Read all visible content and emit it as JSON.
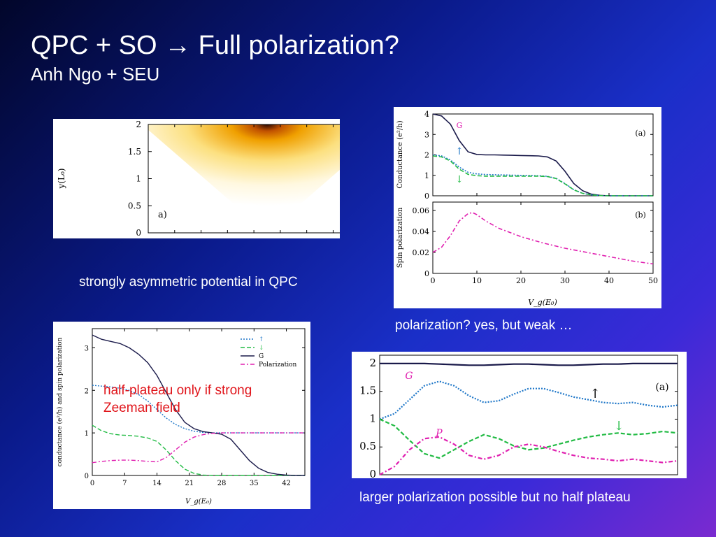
{
  "slide": {
    "title": "QPC + SO → Full polarization?",
    "subtitle": "Anh Ngo + SEU",
    "captions": {
      "heatmap": "strongly  asymmetric potential in QPC",
      "top_right": "polarization? yes, but weak …",
      "bottom_right": "larger polarization possible but no half plateau"
    },
    "red_note_lines": [
      "half-plateau only if strong",
      "Zeeman field"
    ]
  },
  "colors": {
    "up": "#1f77c8",
    "down": "#22bb44",
    "G": "#1a1a4a",
    "P": "#e020b0",
    "note": "#e0141a"
  },
  "chart_data": [
    {
      "type": "heatmap",
      "panel_label": "a)",
      "ylabel": "y(L₀)",
      "yticks": [
        "0",
        "0.5",
        "1",
        "1.5",
        "2"
      ],
      "ylim": [
        0,
        2
      ],
      "colormap": "white-yellow-orange-black"
    },
    {
      "type": "line",
      "panel_label": "(a)",
      "ylabel": "Conductance (e²/h)",
      "yticks": [
        "0",
        "1",
        "2",
        "3",
        "4"
      ],
      "ylim": [
        0,
        4
      ],
      "xlim": [
        0,
        50
      ],
      "x": [
        0,
        2,
        4,
        6,
        8,
        10,
        12,
        14,
        16,
        18,
        20,
        22,
        24,
        26,
        28,
        30,
        32,
        34,
        36,
        38,
        40,
        42,
        44,
        46,
        48,
        50
      ],
      "series": [
        {
          "name": "G",
          "values": [
            4.0,
            3.9,
            3.5,
            2.7,
            2.15,
            2.02,
            2.0,
            2.0,
            1.99,
            1.98,
            1.97,
            1.96,
            1.95,
            1.9,
            1.7,
            1.2,
            0.6,
            0.25,
            0.08,
            0.02,
            0.0,
            0.0,
            0.0,
            0.0,
            0.0,
            0.0
          ]
        },
        {
          "name": "↑",
          "values": [
            2.0,
            1.95,
            1.75,
            1.4,
            1.15,
            1.07,
            1.04,
            1.03,
            1.02,
            1.01,
            1.0,
            0.99,
            0.98,
            0.95,
            0.85,
            0.6,
            0.3,
            0.12,
            0.04,
            0.01,
            0.0,
            0.0,
            0.0,
            0.0,
            0.0,
            0.0
          ]
        },
        {
          "name": "↓",
          "values": [
            1.95,
            1.9,
            1.7,
            1.3,
            1.05,
            0.98,
            0.96,
            0.96,
            0.96,
            0.96,
            0.96,
            0.96,
            0.96,
            0.94,
            0.84,
            0.58,
            0.29,
            0.12,
            0.04,
            0.01,
            0.0,
            0.0,
            0.0,
            0.0,
            0.0,
            0.0
          ]
        }
      ],
      "annotations": [
        "G",
        "↑",
        "↓"
      ]
    },
    {
      "type": "line",
      "panel_label": "(b)",
      "ylabel": "Spin polarization",
      "xlabel": "V_g(E₀)",
      "yticks": [
        "0",
        "0.02",
        "0.04",
        "0.06"
      ],
      "xticks": [
        "0",
        "10",
        "20",
        "30",
        "40",
        "50"
      ],
      "ylim": [
        0,
        0.068
      ],
      "xlim": [
        0,
        50
      ],
      "x": [
        0,
        2,
        4,
        6,
        8,
        9,
        10,
        12,
        15,
        20,
        25,
        30,
        35,
        40,
        45,
        50
      ],
      "series": [
        {
          "name": "P",
          "values": [
            0.02,
            0.025,
            0.036,
            0.05,
            0.057,
            0.058,
            0.056,
            0.05,
            0.043,
            0.035,
            0.029,
            0.024,
            0.02,
            0.016,
            0.012,
            0.009
          ]
        }
      ]
    },
    {
      "type": "line",
      "ylabel": "conductance (e²/h) and spin polarization",
      "xlabel": "V_g(E₀)",
      "yticks": [
        "0",
        "1",
        "2",
        "3"
      ],
      "xticks": [
        "0",
        "7",
        "14",
        "21",
        "28",
        "35",
        "42"
      ],
      "ylim": [
        0,
        3.45
      ],
      "xlim": [
        0,
        46
      ],
      "legend": [
        "↑",
        "↓",
        "G",
        "Polarization"
      ],
      "legend_position": "top-right",
      "x": [
        0,
        2,
        4,
        6,
        8,
        10,
        12,
        14,
        16,
        18,
        20,
        22,
        24,
        26,
        28,
        30,
        32,
        34,
        36,
        38,
        40,
        42,
        44,
        46
      ],
      "series": [
        {
          "name": "↑",
          "values": [
            2.12,
            2.1,
            2.08,
            2.05,
            2.0,
            1.9,
            1.75,
            1.55,
            1.35,
            1.2,
            1.1,
            1.04,
            1.01,
            1.0,
            1.0,
            1.0,
            1.0,
            1.0,
            1.0,
            1.0,
            1.0,
            1.0,
            1.0,
            1.0
          ]
        },
        {
          "name": "↓",
          "values": [
            1.18,
            1.05,
            0.98,
            0.95,
            0.94,
            0.92,
            0.88,
            0.8,
            0.6,
            0.35,
            0.15,
            0.05,
            0.01,
            0.0,
            0.0,
            0.0,
            0.0,
            0.0,
            0.0,
            0.0,
            0.0,
            0.0,
            0.0,
            0.0
          ]
        },
        {
          "name": "G",
          "values": [
            3.3,
            3.2,
            3.15,
            3.1,
            3.0,
            2.85,
            2.65,
            2.35,
            1.95,
            1.55,
            1.25,
            1.1,
            1.03,
            1.0,
            0.97,
            0.85,
            0.6,
            0.35,
            0.17,
            0.07,
            0.03,
            0.01,
            0.0,
            0.0
          ]
        },
        {
          "name": "Polarization",
          "values": [
            0.3,
            0.33,
            0.35,
            0.36,
            0.36,
            0.35,
            0.33,
            0.32,
            0.42,
            0.6,
            0.78,
            0.9,
            0.96,
            0.99,
            1.0,
            1.0,
            1.0,
            1.0,
            1.0,
            1.0,
            1.0,
            1.0,
            1.0,
            1.0
          ]
        }
      ]
    },
    {
      "type": "line",
      "panel_label": "(a)",
      "yticks": [
        "0",
        "0.5",
        "1",
        "1.5",
        "2"
      ],
      "ylim": [
        0,
        2.15
      ],
      "xlim": [
        0,
        40
      ],
      "annotations": [
        "G",
        "P",
        "↑",
        "↓"
      ],
      "x": [
        0,
        2,
        4,
        6,
        8,
        10,
        12,
        14,
        16,
        18,
        20,
        22,
        24,
        26,
        28,
        30,
        32,
        34,
        36,
        38,
        40
      ],
      "series": [
        {
          "name": "G",
          "values": [
            2.0,
            2.0,
            2.0,
            2.0,
            1.99,
            1.98,
            1.97,
            1.97,
            1.98,
            1.99,
            1.99,
            1.98,
            1.97,
            1.97,
            1.98,
            1.99,
            1.99,
            2.0,
            2.0,
            2.0,
            2.0
          ]
        },
        {
          "name": "↑",
          "values": [
            1.0,
            1.1,
            1.35,
            1.6,
            1.68,
            1.6,
            1.42,
            1.3,
            1.33,
            1.45,
            1.55,
            1.55,
            1.48,
            1.4,
            1.35,
            1.3,
            1.28,
            1.3,
            1.25,
            1.22,
            1.25
          ]
        },
        {
          "name": "↓",
          "values": [
            1.0,
            0.88,
            0.62,
            0.38,
            0.3,
            0.45,
            0.6,
            0.72,
            0.65,
            0.52,
            0.45,
            0.48,
            0.55,
            0.62,
            0.68,
            0.72,
            0.75,
            0.72,
            0.74,
            0.78,
            0.75
          ]
        },
        {
          "name": "P",
          "values": [
            0.0,
            0.15,
            0.45,
            0.65,
            0.68,
            0.55,
            0.35,
            0.28,
            0.35,
            0.5,
            0.55,
            0.5,
            0.42,
            0.35,
            0.3,
            0.28,
            0.25,
            0.28,
            0.25,
            0.22,
            0.25
          ]
        }
      ]
    }
  ]
}
